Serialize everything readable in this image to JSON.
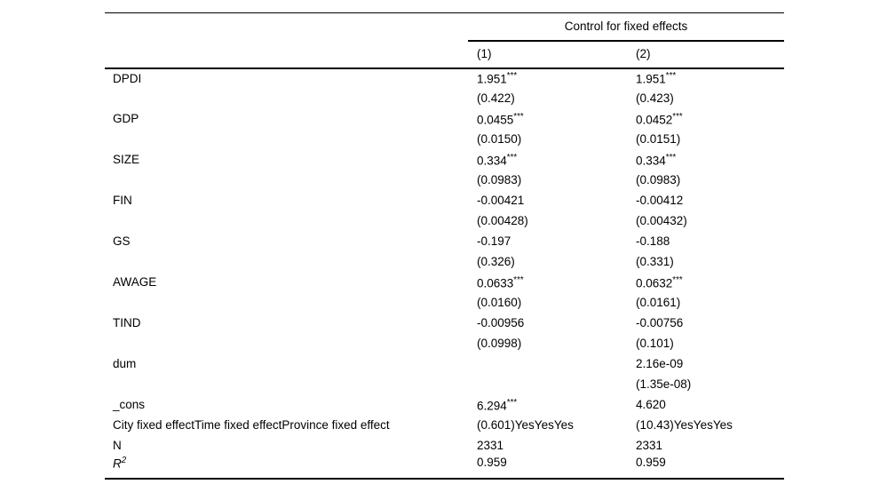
{
  "colors": {
    "text": "#000000",
    "background": "#ffffff",
    "rule": "#000000"
  },
  "table": {
    "group_header": "Control for fixed effects",
    "columns": [
      "(1)",
      "(2)"
    ],
    "rows": [
      {
        "label": "DPDI",
        "c1": "1.951***",
        "c2": "1.951***"
      },
      {
        "label": "",
        "c1": "(0.422)",
        "c2": "(0.423)"
      },
      {
        "label": "GDP",
        "c1": "0.0455***",
        "c2": "0.0452***"
      },
      {
        "label": "",
        "c1": "(0.0150)",
        "c2": "(0.0151)"
      },
      {
        "label": "SIZE",
        "c1": "0.334***",
        "c2": "0.334***"
      },
      {
        "label": "",
        "c1": "(0.0983)",
        "c2": "(0.0983)"
      },
      {
        "label": "FIN",
        "c1": "-0.00421",
        "c2": "-0.00412"
      },
      {
        "label": "",
        "c1": "(0.00428)",
        "c2": "(0.00432)"
      },
      {
        "label": "GS",
        "c1": "-0.197",
        "c2": "-0.188"
      },
      {
        "label": "",
        "c1": "(0.326)",
        "c2": "(0.331)"
      },
      {
        "label": "AWAGE",
        "c1": "0.0633***",
        "c2": "0.0632***"
      },
      {
        "label": "",
        "c1": "(0.0160)",
        "c2": "(0.0161)"
      },
      {
        "label": "TIND",
        "c1": "-0.00956",
        "c2": "-0.00756"
      },
      {
        "label": "",
        "c1": "(0.0998)",
        "c2": "(0.101)"
      },
      {
        "label": "dum",
        "c1": "",
        "c2": "2.16e-09"
      },
      {
        "label": "",
        "c1": "",
        "c2": "(1.35e-08)"
      },
      {
        "label": "_cons",
        "c1": "6.294***",
        "c2": "4.620"
      },
      {
        "label": "City fixed effectTime fixed effectProvince fixed effect",
        "c1": "(0.601)YesYesYes",
        "c2": "(10.43)YesYesYes"
      },
      {
        "label": "N",
        "c1": "2331",
        "c2": "2331"
      },
      {
        "label": "R^2",
        "italic": true,
        "c1": "0.959",
        "c2": "0.959"
      }
    ]
  }
}
